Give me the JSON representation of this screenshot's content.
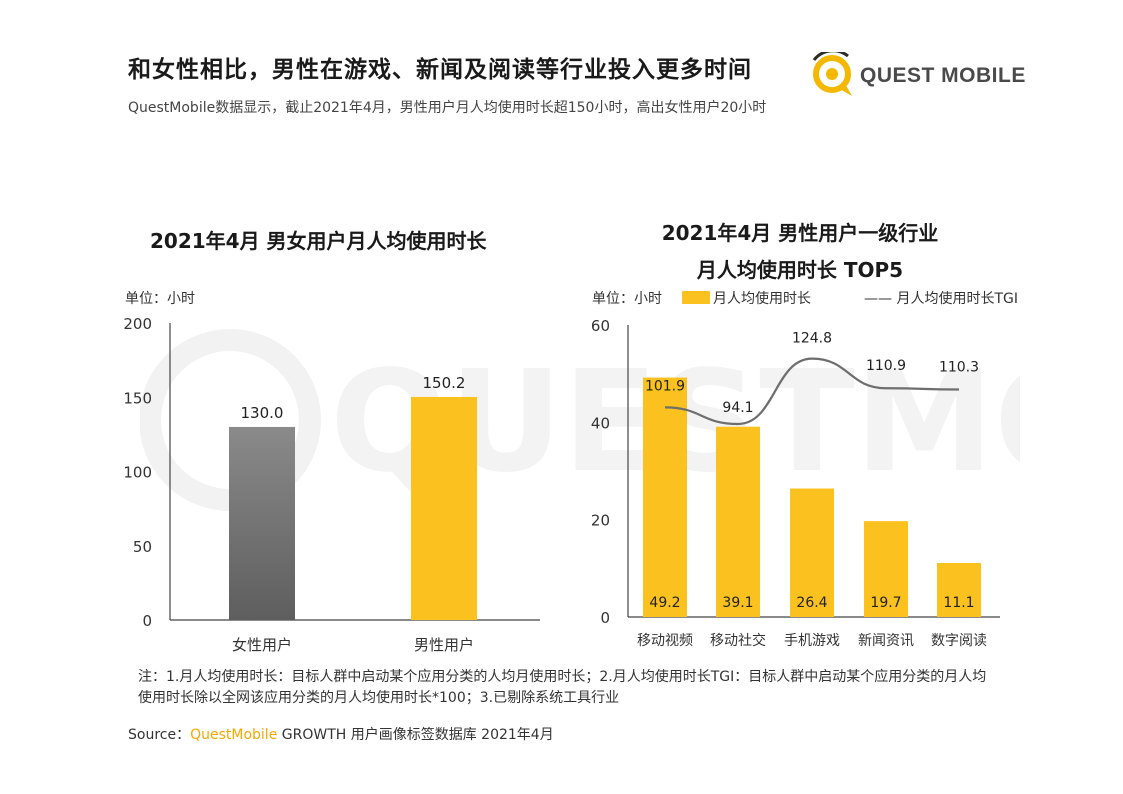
{
  "header": {
    "title": "和女性相比，男性在游戏、新闻及阅读等行业投入更多时间",
    "subtitle": "QuestMobile数据显示，截止2021年4月，男性用户月人均使用时长超150小时，高出女性用户20小时",
    "logo_text": "QUEST MOBILE"
  },
  "watermark_text": "QUESTMOBILE",
  "chart_data": [
    {
      "type": "bar",
      "title": "2021年4月 男女用户月人均使用时长",
      "unit_label": "单位：小时",
      "categories": [
        "女性用户",
        "男性用户"
      ],
      "values": [
        130.0,
        150.2
      ],
      "value_labels": [
        "130.0",
        "150.2"
      ],
      "colors": [
        "#7a7a7a",
        "#fbc21f"
      ],
      "yticks": [
        0,
        50,
        100,
        150,
        200
      ],
      "ylim": [
        0,
        200
      ]
    },
    {
      "type": "bar",
      "title_line1": "2021年4月 男性用户一级行业",
      "title_line2": "月人均使用时长 TOP5",
      "unit_label": "单位：小时",
      "legend": {
        "bar_label": "月人均使用时长",
        "line_label": "—— 月人均使用时长TGI"
      },
      "categories": [
        "移动视频",
        "移动社交",
        "手机游戏",
        "新闻资讯",
        "数字阅读"
      ],
      "series": [
        {
          "name": "月人均使用时长",
          "values": [
            49.2,
            39.1,
            26.4,
            19.7,
            11.1
          ],
          "labels": [
            "49.2",
            "39.1",
            "26.4",
            "19.7",
            "11.1"
          ],
          "color": "#fbc21f"
        },
        {
          "name": "月人均使用时长TGI",
          "values": [
            101.9,
            94.1,
            124.8,
            110.9,
            110.3
          ],
          "labels": [
            "101.9",
            "94.1",
            "124.8",
            "110.9",
            "110.3"
          ],
          "color": "#6e6e6e"
        }
      ],
      "yticks": [
        0,
        20,
        40,
        60
      ],
      "ylim": [
        0,
        60
      ]
    }
  ],
  "footer": {
    "notes": "注：1.月人均使用时长：目标人群中启动某个应用分类的人均月使用时长；2.月人均使用时长TGI：目标人群中启动某个应用分类的月人均使用时长除以全网该应用分类的月人均使用时长*100；3.已剔除系统工具行业",
    "source_prefix": "Source：",
    "source_brand": "QuestMobile",
    "source_rest": " GROWTH 用户画像标签数据库 2021年4月"
  }
}
